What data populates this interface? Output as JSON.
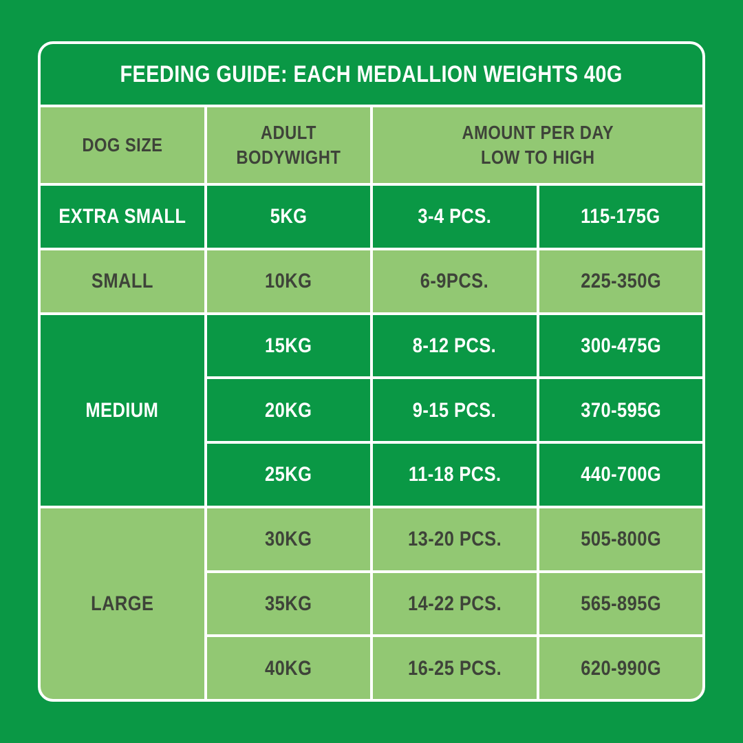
{
  "colors": {
    "background": "#0a9845",
    "dark_cell": "#0a9845",
    "light_cell": "#92c873",
    "text_on_dark": "#ffffff",
    "text_on_light": "#3e4339",
    "border": "#ffffff"
  },
  "chart_data": {
    "type": "table",
    "title": "FEEDING GUIDE: EACH MEDALLION WEIGHTS 40G",
    "medallion_weight_g": 40,
    "header": {
      "dog_size": "DOG SIZE",
      "bodyweight": "ADULT\nBODYWIGHT",
      "amount": "AMOUNT PER DAY\nLOW TO HIGH"
    },
    "groups": [
      {
        "size": "EXTRA SMALL",
        "shade": "dark",
        "rows": [
          {
            "weight": "5KG",
            "pcs": "3-4 PCS.",
            "grams": "115-175G"
          }
        ]
      },
      {
        "size": "SMALL",
        "shade": "light",
        "rows": [
          {
            "weight": "10KG",
            "pcs": "6-9PCS.",
            "grams": "225-350G"
          }
        ]
      },
      {
        "size": "MEDIUM",
        "shade": "dark",
        "rows": [
          {
            "weight": "15KG",
            "pcs": "8-12 PCS.",
            "grams": "300-475G"
          },
          {
            "weight": "20KG",
            "pcs": "9-15 PCS.",
            "grams": "370-595G"
          },
          {
            "weight": "25KG",
            "pcs": "11-18 PCS.",
            "grams": "440-700G"
          }
        ]
      },
      {
        "size": "LARGE",
        "shade": "light",
        "rows": [
          {
            "weight": "30KG",
            "pcs": "13-20 PCS.",
            "grams": "505-800G"
          },
          {
            "weight": "35KG",
            "pcs": "14-22 PCS.",
            "grams": "565-895G"
          },
          {
            "weight": "40KG",
            "pcs": "16-25 PCS.",
            "grams": "620-990G"
          }
        ]
      }
    ]
  }
}
